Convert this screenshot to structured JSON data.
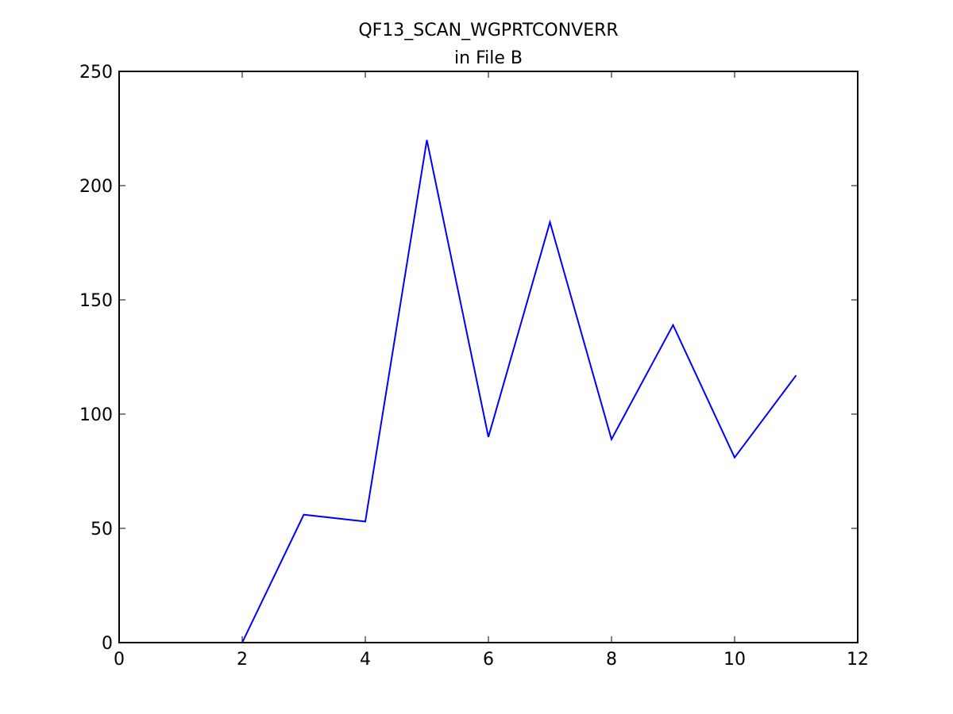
{
  "chart_data": {
    "type": "line",
    "title": [
      "QF13_SCAN_WGPRTCONVERR",
      "in File B"
    ],
    "x": [
      2,
      3,
      4,
      5,
      6,
      7,
      8,
      9,
      10,
      11
    ],
    "values": [
      0,
      56,
      53,
      220,
      90,
      184,
      89,
      139,
      81,
      117
    ],
    "color": "#0000ff",
    "xlim": [
      0,
      12
    ],
    "xticks": [
      0,
      2,
      4,
      6,
      8,
      10,
      12
    ],
    "ylim": [
      0,
      250
    ],
    "yticks": [
      0,
      50,
      100,
      150,
      200,
      250
    ],
    "grid": false
  }
}
